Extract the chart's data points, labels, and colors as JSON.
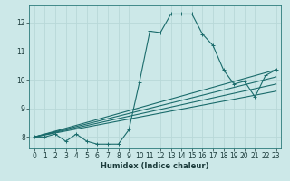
{
  "title": "",
  "xlabel": "Humidex (Indice chaleur)",
  "ylabel": "",
  "bg_color": "#cce8e8",
  "grid_color": "#b8d8d8",
  "line_color": "#1a6b6b",
  "xlim": [
    -0.5,
    23.5
  ],
  "ylim": [
    7.6,
    12.6
  ],
  "xticks": [
    0,
    1,
    2,
    3,
    4,
    5,
    6,
    7,
    8,
    9,
    10,
    11,
    12,
    13,
    14,
    15,
    16,
    17,
    18,
    19,
    20,
    21,
    22,
    23
  ],
  "yticks": [
    8,
    9,
    10,
    11,
    12
  ],
  "main_line_x": [
    0,
    1,
    2,
    3,
    4,
    5,
    6,
    7,
    8,
    9,
    10,
    11,
    12,
    13,
    14,
    15,
    16,
    17,
    18,
    19,
    20,
    21,
    22,
    23
  ],
  "main_line_y": [
    8.0,
    8.0,
    8.1,
    7.85,
    8.1,
    7.85,
    7.75,
    7.75,
    7.75,
    8.25,
    9.9,
    11.7,
    11.65,
    12.3,
    12.3,
    12.3,
    11.6,
    11.2,
    10.35,
    9.85,
    9.95,
    9.4,
    10.15,
    10.35
  ],
  "trend_lines": [
    {
      "x": [
        0,
        23
      ],
      "y": [
        8.0,
        10.35
      ]
    },
    {
      "x": [
        0,
        23
      ],
      "y": [
        8.0,
        10.1
      ]
    },
    {
      "x": [
        0,
        23
      ],
      "y": [
        8.0,
        9.85
      ]
    },
    {
      "x": [
        0,
        23
      ],
      "y": [
        8.0,
        9.6
      ]
    }
  ],
  "tick_fontsize": 5.5,
  "xlabel_fontsize": 6.0,
  "marker_size": 2.5,
  "line_width": 0.8
}
